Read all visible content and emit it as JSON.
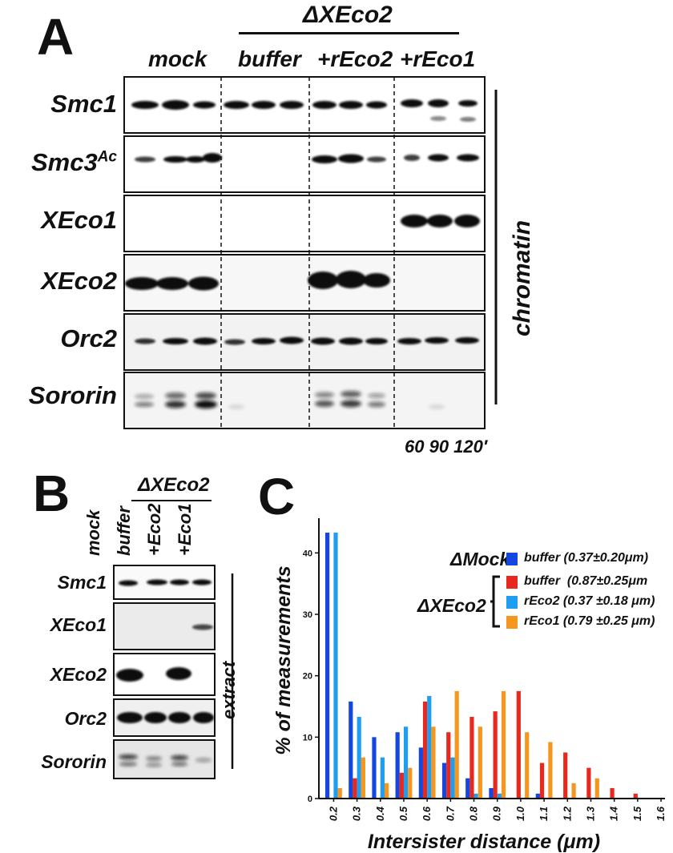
{
  "panel_a": {
    "label": "A",
    "delta_header": "ΔXEco2",
    "conditions": [
      "mock",
      "buffer",
      "+rEco2",
      "+rEco1"
    ],
    "rows": [
      "Smc1",
      "Smc3",
      "XEco1",
      "XEco2",
      "Orc2",
      "Sororin"
    ],
    "smc3_superscript": "Ac",
    "side_label": "chromatin",
    "timepoints": "60 90 120′"
  },
  "panel_b": {
    "label": "B",
    "delta_header": "ΔXEco2",
    "lanes": [
      "mock",
      "buffer",
      "+Eco2",
      "+Eco1"
    ],
    "rows": [
      "Smc1",
      "XEco1",
      "XEco2",
      "Orc2",
      "Sororin"
    ],
    "side_label": "extract"
  },
  "panel_c": {
    "label": "C",
    "legend": {
      "group_mock": "ΔMock",
      "group_xeco2": "ΔXEco2",
      "entries": [
        "buffer (0.37±0.20μm)",
        "buffer  (0.87±0.25μm",
        "rEco2 (0.37 ±0.18 μm)",
        "rEco1 (0.79 ±0.25 μm)"
      ]
    }
  },
  "colors": {
    "mock_buffer": "#1446e0",
    "xeco2_buffer": "#e8281c",
    "xeco2_reco2": "#1e9ef0",
    "xeco2_reco1": "#f5961e"
  },
  "chart_data": {
    "type": "bar",
    "xlabel": "Intersister distance (μm)",
    "ylabel": "% of measurements",
    "categories": [
      "0.2",
      "0.3",
      "0.4",
      "0.5",
      "0.6",
      "0.7",
      "0.8",
      "0.9",
      "1.0",
      "1.1",
      "1.2",
      "1.3",
      "1.4",
      "1.5",
      "1.6"
    ],
    "yticks": [
      "0",
      "10",
      "20",
      "30",
      "40"
    ],
    "ylim": [
      0,
      45
    ],
    "series": [
      {
        "name": "ΔMock buffer",
        "values": [
          43.3,
          15.8,
          10.0,
          10.8,
          8.3,
          5.8,
          3.3,
          1.7,
          0,
          0.8,
          0,
          0,
          0,
          0,
          0
        ]
      },
      {
        "name": "ΔXEco2 buffer",
        "values": [
          0,
          3.3,
          0,
          4.2,
          15.8,
          10.8,
          13.3,
          14.2,
          17.5,
          5.8,
          7.5,
          5.0,
          1.7,
          0.8,
          0
        ]
      },
      {
        "name": "ΔXEco2 rEco2",
        "values": [
          43.3,
          13.3,
          6.7,
          11.7,
          16.7,
          6.7,
          0.8,
          0.8,
          0,
          0,
          0,
          0,
          0,
          0,
          0
        ]
      },
      {
        "name": "ΔXEco2 rEco1",
        "values": [
          1.7,
          6.7,
          2.5,
          5.0,
          11.7,
          17.5,
          11.7,
          17.5,
          10.8,
          9.2,
          2.5,
          3.3,
          0,
          0,
          0
        ]
      }
    ],
    "grid": false
  }
}
